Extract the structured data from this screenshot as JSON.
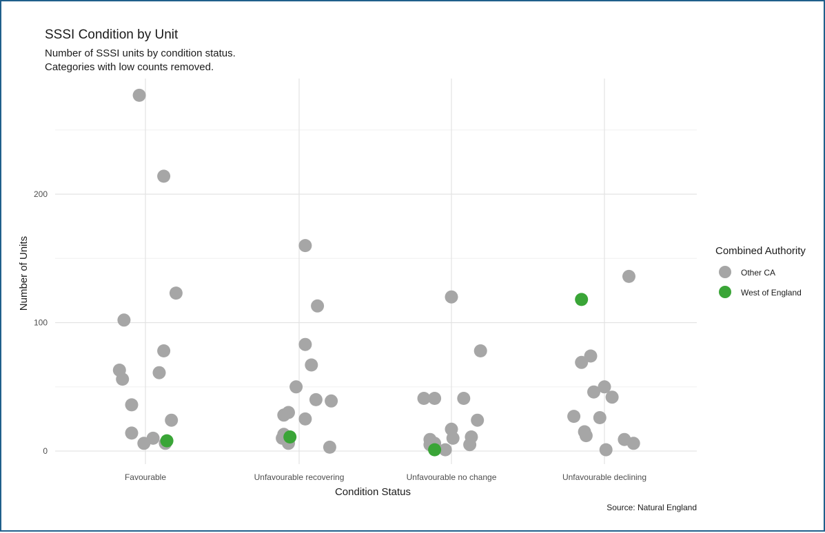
{
  "chart_data": {
    "type": "scatter",
    "title": "SSSI Condition by Unit",
    "subtitle_lines": [
      "Number of SSSI units by condition status.",
      "Categories with low counts removed."
    ],
    "xlabel": "Condition Status",
    "ylabel": "Number of Units",
    "caption": "Source: Natural England",
    "categories": [
      "Favourable",
      "Unfavourable recovering",
      "Unfavourable no change",
      "Unfavourable declining"
    ],
    "y_ticks": [
      0,
      100,
      200
    ],
    "ylim": [
      -10,
      290
    ],
    "grid": true,
    "legend": {
      "title": "Combined Authority",
      "position": "right",
      "entries": [
        {
          "name": "Other CA",
          "color": "#a6a6a6"
        },
        {
          "name": "West of England",
          "color": "#3aa537"
        }
      ]
    },
    "series": [
      {
        "name": "Other CA",
        "color": "#a6a6a6",
        "points": [
          {
            "x": "Favourable",
            "jitter": -0.04,
            "y": 277
          },
          {
            "x": "Favourable",
            "jitter": 0.12,
            "y": 214
          },
          {
            "x": "Favourable",
            "jitter": 0.2,
            "y": 123
          },
          {
            "x": "Favourable",
            "jitter": -0.14,
            "y": 102
          },
          {
            "x": "Favourable",
            "jitter": 0.12,
            "y": 78
          },
          {
            "x": "Favourable",
            "jitter": -0.17,
            "y": 63
          },
          {
            "x": "Favourable",
            "jitter": 0.09,
            "y": 61
          },
          {
            "x": "Favourable",
            "jitter": -0.15,
            "y": 56
          },
          {
            "x": "Favourable",
            "jitter": -0.09,
            "y": 36
          },
          {
            "x": "Favourable",
            "jitter": 0.17,
            "y": 24
          },
          {
            "x": "Favourable",
            "jitter": -0.09,
            "y": 14
          },
          {
            "x": "Favourable",
            "jitter": 0.05,
            "y": 10
          },
          {
            "x": "Favourable",
            "jitter": -0.01,
            "y": 6
          },
          {
            "x": "Favourable",
            "jitter": 0.13,
            "y": 6
          },
          {
            "x": "Unfavourable recovering",
            "jitter": 0.04,
            "y": 160
          },
          {
            "x": "Unfavourable recovering",
            "jitter": 0.12,
            "y": 113
          },
          {
            "x": "Unfavourable recovering",
            "jitter": 0.04,
            "y": 83
          },
          {
            "x": "Unfavourable recovering",
            "jitter": 0.08,
            "y": 67
          },
          {
            "x": "Unfavourable recovering",
            "jitter": -0.02,
            "y": 50
          },
          {
            "x": "Unfavourable recovering",
            "jitter": 0.11,
            "y": 40
          },
          {
            "x": "Unfavourable recovering",
            "jitter": 0.21,
            "y": 39
          },
          {
            "x": "Unfavourable recovering",
            "jitter": -0.07,
            "y": 30
          },
          {
            "x": "Unfavourable recovering",
            "jitter": -0.1,
            "y": 28
          },
          {
            "x": "Unfavourable recovering",
            "jitter": 0.04,
            "y": 25
          },
          {
            "x": "Unfavourable recovering",
            "jitter": -0.1,
            "y": 13
          },
          {
            "x": "Unfavourable recovering",
            "jitter": -0.11,
            "y": 10
          },
          {
            "x": "Unfavourable recovering",
            "jitter": -0.07,
            "y": 6
          },
          {
            "x": "Unfavourable recovering",
            "jitter": 0.2,
            "y": 3
          },
          {
            "x": "Unfavourable no change",
            "jitter": 0.0,
            "y": 120
          },
          {
            "x": "Unfavourable no change",
            "jitter": 0.19,
            "y": 78
          },
          {
            "x": "Unfavourable no change",
            "jitter": -0.18,
            "y": 41
          },
          {
            "x": "Unfavourable no change",
            "jitter": -0.11,
            "y": 41
          },
          {
            "x": "Unfavourable no change",
            "jitter": 0.08,
            "y": 41
          },
          {
            "x": "Unfavourable no change",
            "jitter": 0.17,
            "y": 24
          },
          {
            "x": "Unfavourable no change",
            "jitter": 0.0,
            "y": 17
          },
          {
            "x": "Unfavourable no change",
            "jitter": 0.13,
            "y": 11
          },
          {
            "x": "Unfavourable no change",
            "jitter": 0.01,
            "y": 10
          },
          {
            "x": "Unfavourable no change",
            "jitter": -0.14,
            "y": 9
          },
          {
            "x": "Unfavourable no change",
            "jitter": -0.11,
            "y": 6
          },
          {
            "x": "Unfavourable no change",
            "jitter": 0.12,
            "y": 5
          },
          {
            "x": "Unfavourable no change",
            "jitter": -0.14,
            "y": 5
          },
          {
            "x": "Unfavourable no change",
            "jitter": -0.04,
            "y": 1
          },
          {
            "x": "Unfavourable declining",
            "jitter": 0.16,
            "y": 136
          },
          {
            "x": "Unfavourable declining",
            "jitter": -0.09,
            "y": 74
          },
          {
            "x": "Unfavourable declining",
            "jitter": -0.15,
            "y": 69
          },
          {
            "x": "Unfavourable declining",
            "jitter": 0.0,
            "y": 50
          },
          {
            "x": "Unfavourable declining",
            "jitter": -0.07,
            "y": 46
          },
          {
            "x": "Unfavourable declining",
            "jitter": 0.05,
            "y": 42
          },
          {
            "x": "Unfavourable declining",
            "jitter": -0.2,
            "y": 27
          },
          {
            "x": "Unfavourable declining",
            "jitter": -0.03,
            "y": 26
          },
          {
            "x": "Unfavourable declining",
            "jitter": -0.13,
            "y": 15
          },
          {
            "x": "Unfavourable declining",
            "jitter": -0.12,
            "y": 12
          },
          {
            "x": "Unfavourable declining",
            "jitter": 0.13,
            "y": 9
          },
          {
            "x": "Unfavourable declining",
            "jitter": 0.19,
            "y": 6
          },
          {
            "x": "Unfavourable declining",
            "jitter": 0.01,
            "y": 1
          }
        ]
      },
      {
        "name": "West of England",
        "color": "#3aa537",
        "points": [
          {
            "x": "Favourable",
            "jitter": 0.14,
            "y": 8
          },
          {
            "x": "Unfavourable recovering",
            "jitter": -0.06,
            "y": 11
          },
          {
            "x": "Unfavourable no change",
            "jitter": -0.11,
            "y": 1
          },
          {
            "x": "Unfavourable declining",
            "jitter": -0.15,
            "y": 118
          }
        ]
      }
    ]
  }
}
